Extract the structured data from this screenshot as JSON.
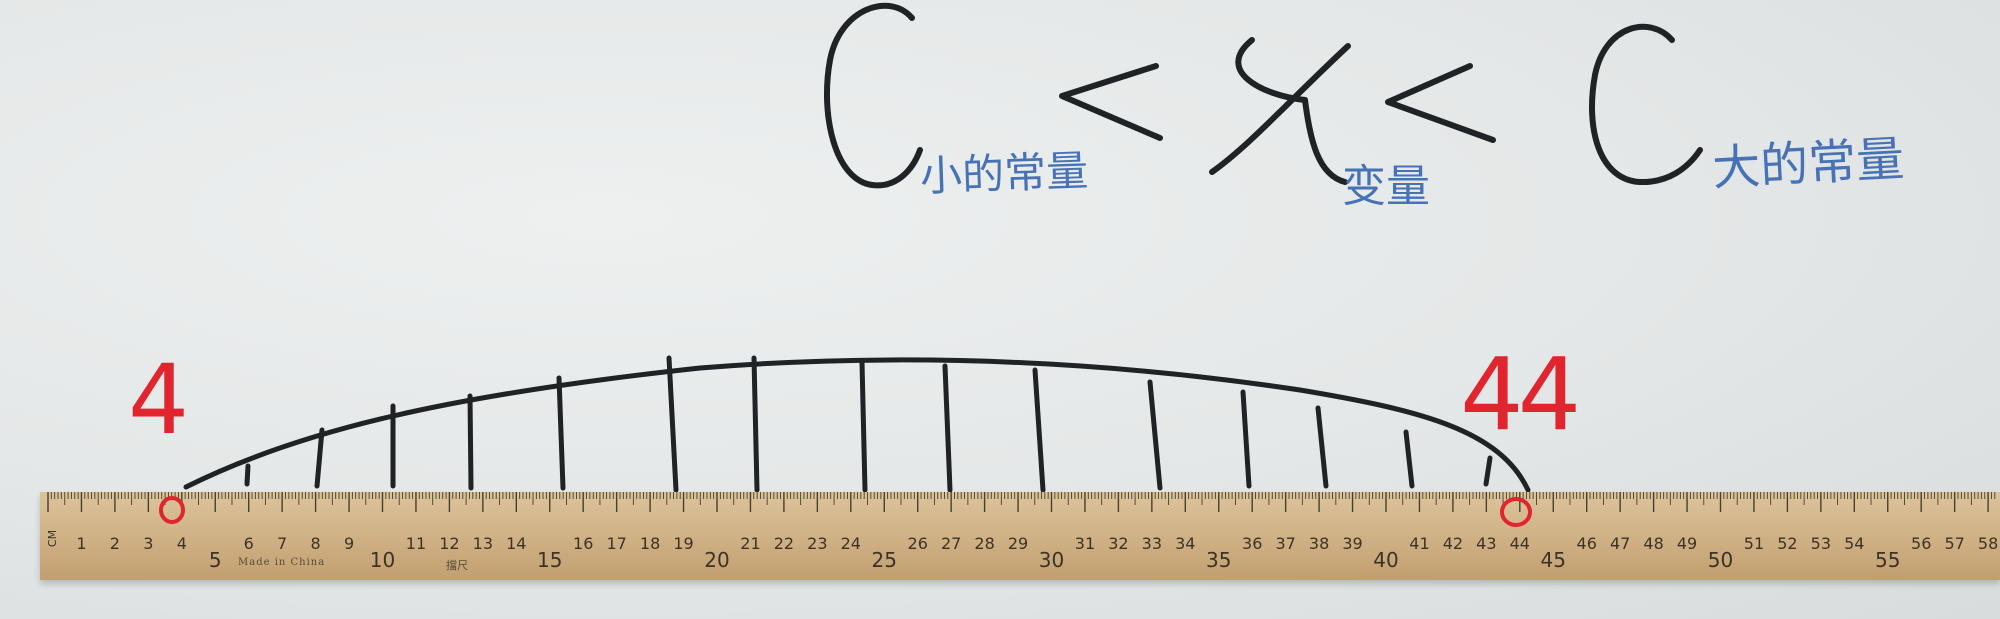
{
  "inequality": {
    "left_constant": "C",
    "left_caption": "小的常量",
    "less_than_1": "<",
    "variable": "x",
    "variable_caption": "变量",
    "less_than_2": "<",
    "right_constant": "C",
    "right_caption": "大的常量"
  },
  "interval": {
    "lower_label": "4",
    "upper_label": "44",
    "lower_value": 4,
    "upper_value": 44
  },
  "ruler": {
    "unit": "CM",
    "made_in": "Made in China",
    "brand_mark": "擋尺",
    "numbers": [
      1,
      2,
      3,
      4,
      5,
      6,
      7,
      8,
      9,
      10,
      11,
      12,
      13,
      14,
      15,
      16,
      17,
      18,
      19,
      20,
      21,
      22,
      23,
      24,
      25,
      26,
      27,
      28,
      29,
      30,
      31,
      32,
      33,
      34,
      35,
      36,
      37,
      38,
      39,
      40,
      41,
      42,
      43,
      44,
      45,
      46,
      47,
      48,
      49,
      50,
      51,
      52,
      53,
      54,
      55,
      56,
      57,
      58
    ]
  },
  "colors": {
    "marker_black": "#1f2326",
    "marker_red": "#e0252f",
    "marker_blue": "#4872b6"
  }
}
